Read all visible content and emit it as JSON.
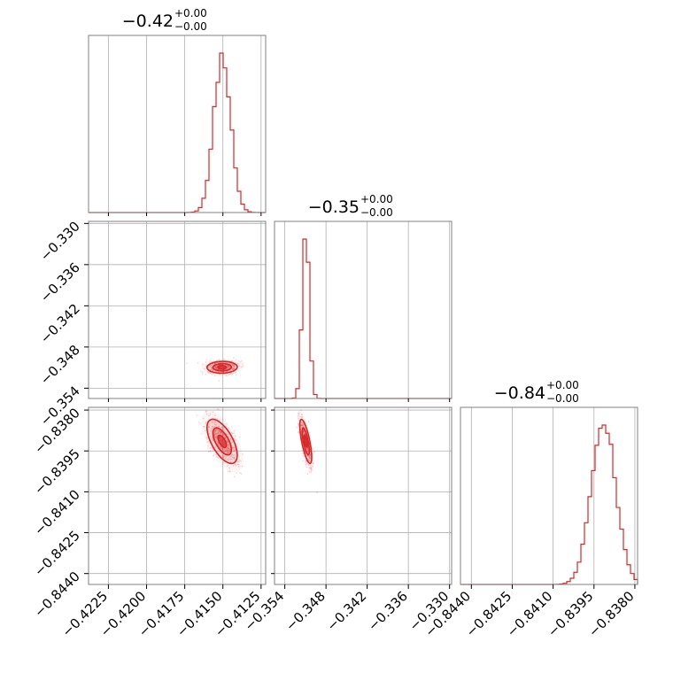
{
  "chart_data": {
    "type": "corner",
    "color": "#d62728",
    "grid": true,
    "parameters": [
      {
        "title_value": "−0.42",
        "title_plus": "+0.00",
        "title_minus": "−0.00",
        "range": [
          -0.4238,
          -0.4122
        ],
        "ticks": [
          -0.4225,
          -0.42,
          -0.4175,
          -0.415,
          -0.4125
        ],
        "tick_labels": [
          "−0.4225",
          "−0.4200",
          "−0.4175",
          "−0.4150",
          "−0.4125"
        ],
        "mean": -0.41505,
        "sd": 0.00055
      },
      {
        "title_value": "−0.35",
        "title_plus": "+0.00",
        "title_minus": "−0.00",
        "range": [
          -0.3555,
          -0.3297
        ],
        "ticks": [
          -0.354,
          -0.348,
          -0.342,
          -0.336,
          -0.33
        ],
        "tick_labels": [
          "−0.354",
          "−0.348",
          "−0.342",
          "−0.336",
          "−0.330"
        ],
        "mean": -0.35095,
        "sd": 0.00048
      },
      {
        "title_value": "−0.84",
        "title_plus": "+0.00",
        "title_minus": "−0.00",
        "range": [
          -0.8444,
          -0.8379
        ],
        "ticks": [
          -0.844,
          -0.8425,
          -0.841,
          -0.8395,
          -0.838
        ],
        "tick_labels": [
          "−0.8440",
          "−0.8425",
          "−0.8410",
          "−0.8395",
          "−0.8380"
        ],
        "mean": -0.83915,
        "sd": 0.00045
      }
    ],
    "correlations": {
      "1_0": 0.05,
      "2_0": -0.62,
      "2_1": -0.72
    }
  }
}
